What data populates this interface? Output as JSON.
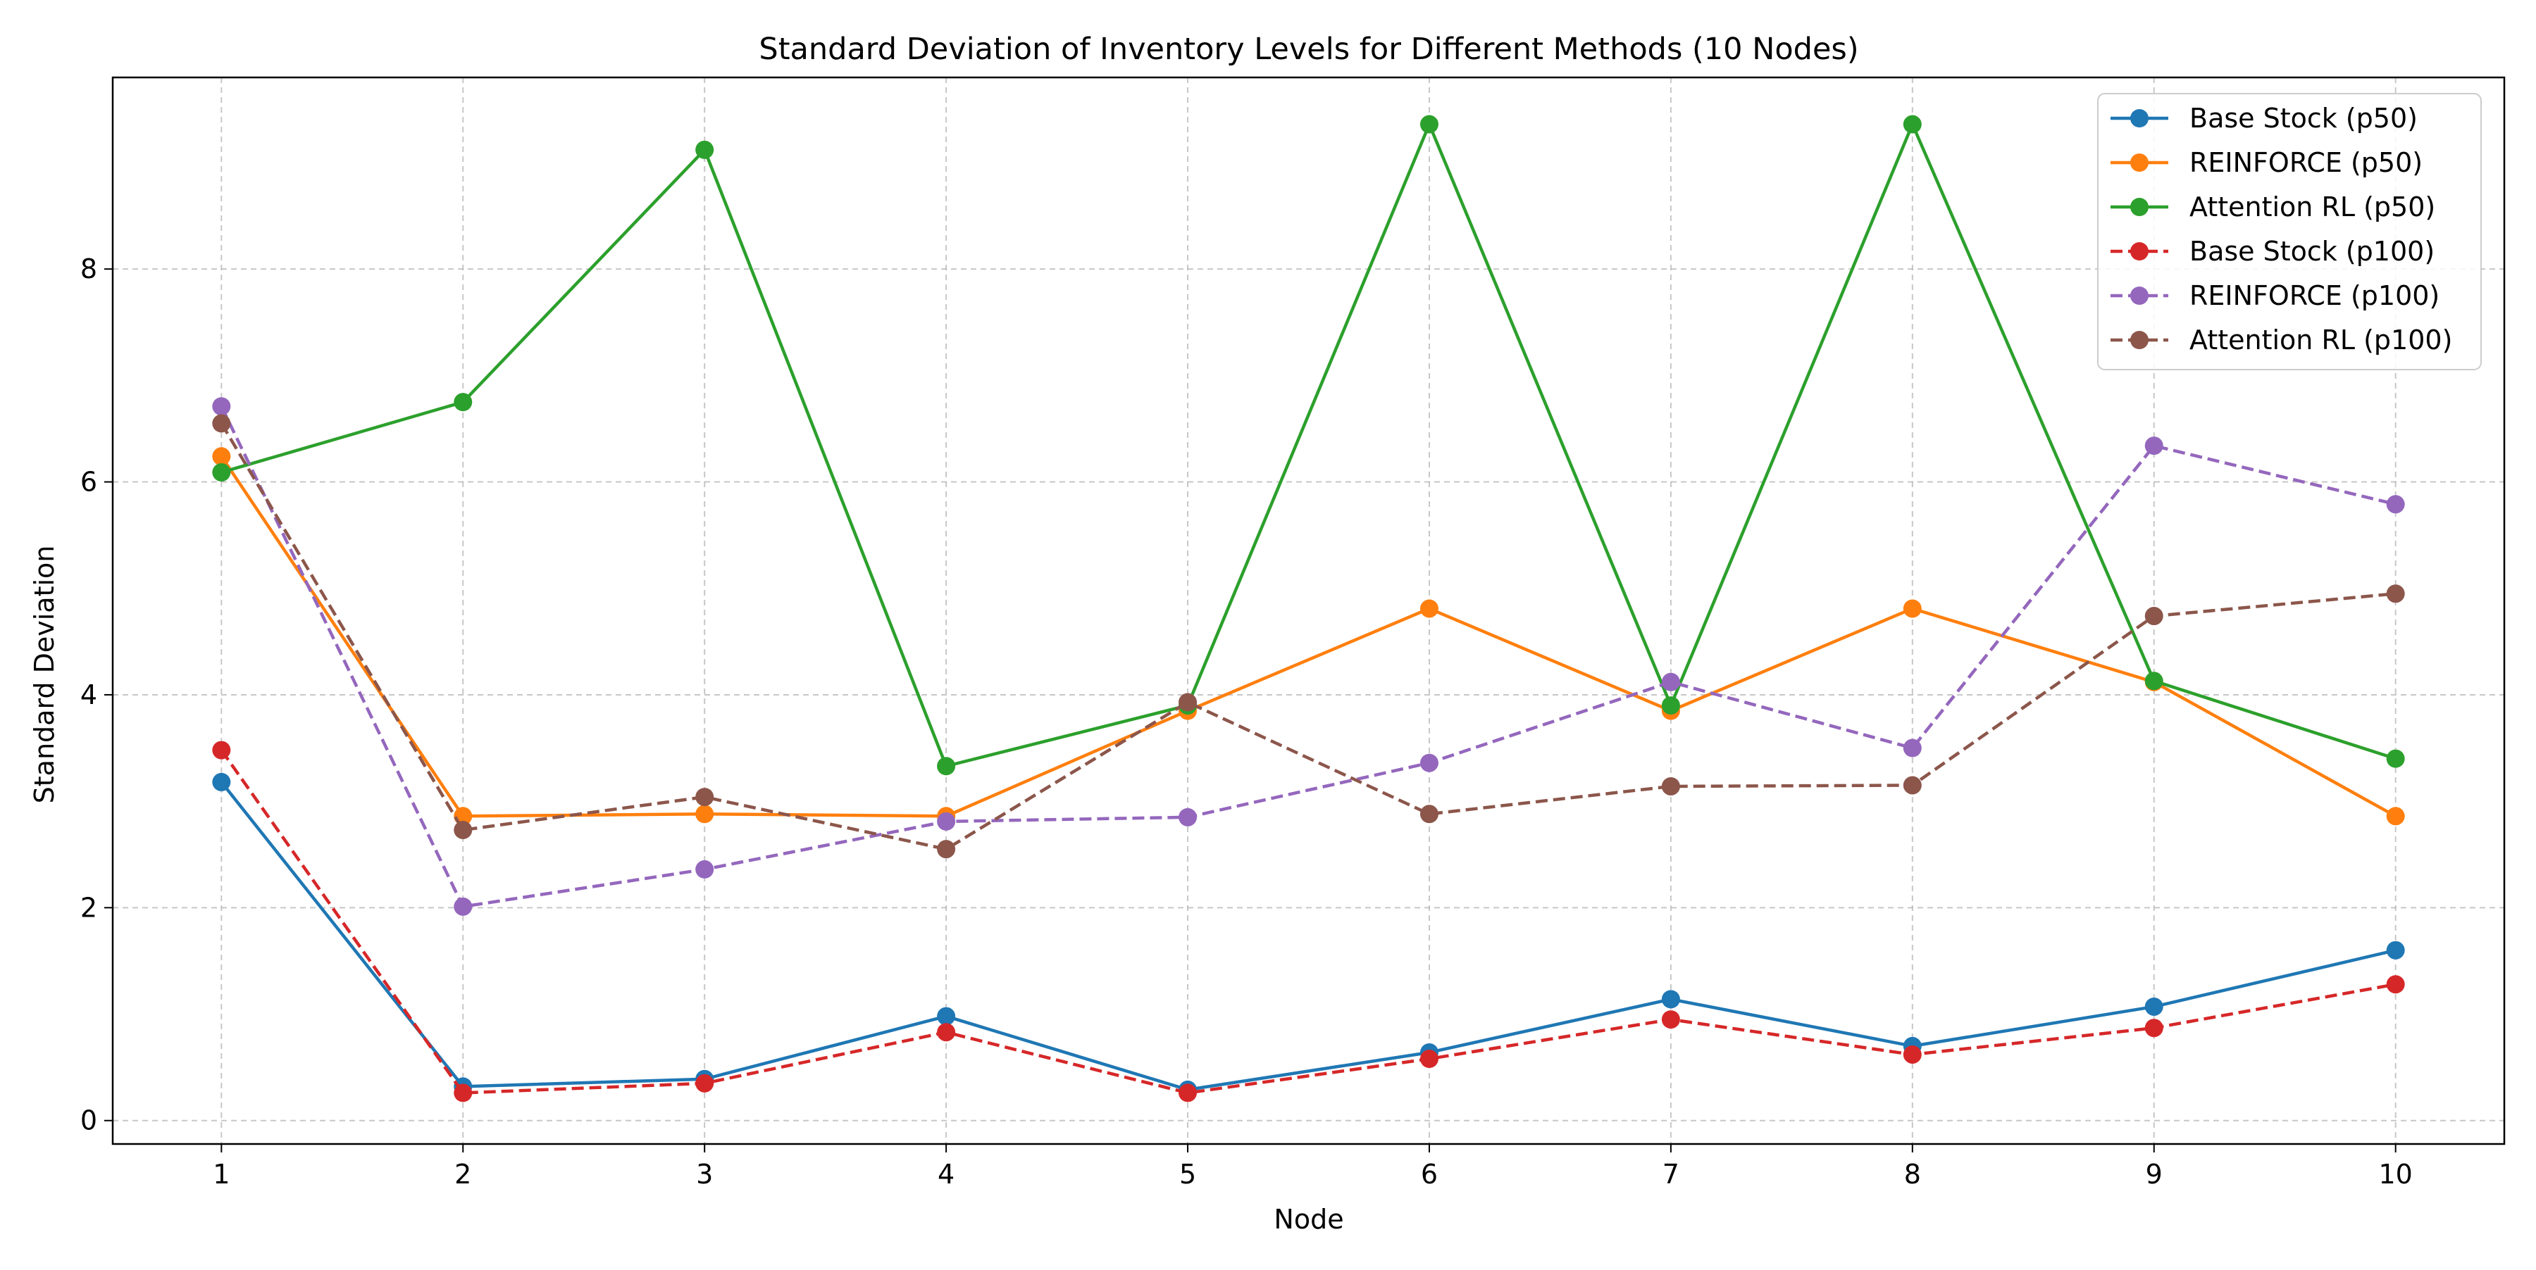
{
  "chart_data": {
    "type": "line",
    "title": "Standard Deviation of Inventory Levels for Different Methods (10 Nodes)",
    "xlabel": "Node",
    "ylabel": "Standard Deviation",
    "x": [
      1,
      2,
      3,
      4,
      5,
      6,
      7,
      8,
      9,
      10
    ],
    "xlim": [
      0.55,
      10.45
    ],
    "ylim": [
      -0.22,
      9.8
    ],
    "xticks": [
      1,
      2,
      3,
      4,
      5,
      6,
      7,
      8,
      9,
      10
    ],
    "yticks": [
      0,
      2,
      4,
      6,
      8
    ],
    "grid": true,
    "legend_position": "top-right",
    "series": [
      {
        "name": "Base Stock (p50)",
        "color": "#1f77b4",
        "style": "solid",
        "values": [
          3.18,
          0.32,
          0.39,
          0.98,
          0.29,
          0.64,
          1.14,
          0.7,
          1.07,
          1.6
        ]
      },
      {
        "name": "REINFORCE (p50)",
        "color": "#ff7f0e",
        "style": "solid",
        "values": [
          6.24,
          2.86,
          2.88,
          2.86,
          3.85,
          4.81,
          3.85,
          4.81,
          4.12,
          2.86
        ]
      },
      {
        "name": "Attention RL (p50)",
        "color": "#2ca02c",
        "style": "solid",
        "values": [
          6.09,
          6.75,
          9.12,
          3.33,
          3.9,
          9.36,
          3.9,
          9.36,
          4.13,
          3.4
        ]
      },
      {
        "name": "Base Stock (p100)",
        "color": "#d62728",
        "style": "dashed",
        "values": [
          3.48,
          0.26,
          0.35,
          0.83,
          0.26,
          0.58,
          0.95,
          0.62,
          0.87,
          1.28
        ]
      },
      {
        "name": "REINFORCE (p100)",
        "color": "#9467bd",
        "style": "dashed",
        "values": [
          6.71,
          2.01,
          2.36,
          2.81,
          2.85,
          3.36,
          4.12,
          3.5,
          6.34,
          5.79
        ]
      },
      {
        "name": "Attention RL (p100)",
        "color": "#8c564b",
        "style": "dashed",
        "values": [
          6.55,
          2.73,
          3.04,
          2.55,
          3.93,
          2.88,
          3.14,
          3.15,
          4.74,
          4.95
        ]
      }
    ]
  }
}
